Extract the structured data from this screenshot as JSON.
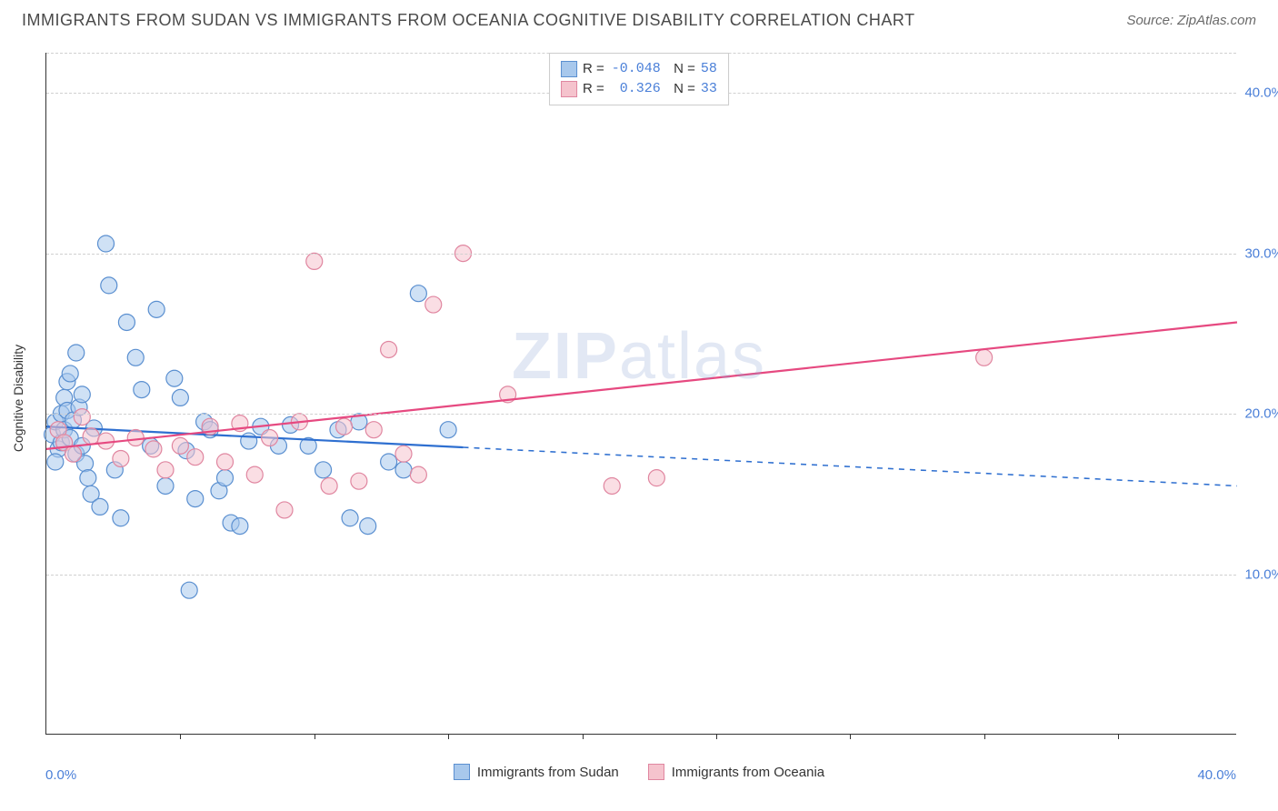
{
  "title": "IMMIGRANTS FROM SUDAN VS IMMIGRANTS FROM OCEANIA COGNITIVE DISABILITY CORRELATION CHART",
  "source": "Source: ZipAtlas.com",
  "y_axis_label": "Cognitive Disability",
  "watermark": "ZIPatlas",
  "chart": {
    "type": "scatter",
    "xlim": [
      0,
      40
    ],
    "ylim": [
      0,
      42.5
    ],
    "x_min_label": "0.0%",
    "x_max_label": "40.0%",
    "y_ticks": [
      10,
      20,
      30,
      40
    ],
    "y_tick_labels": [
      "10.0%",
      "20.0%",
      "30.0%",
      "40.0%"
    ],
    "x_tick_positions": [
      4.5,
      9,
      13.5,
      18,
      22.5,
      27,
      31.5,
      36
    ],
    "background": "#ffffff",
    "grid_color": "#d0d0d0",
    "marker_radius": 9,
    "marker_opacity": 0.55,
    "series": [
      {
        "name": "Immigrants from Sudan",
        "fill": "#a8c8ec",
        "stroke": "#5a8fd0",
        "r_value": "-0.048",
        "n_value": "58",
        "trend": {
          "x1": 0,
          "y1": 19.2,
          "x2": 40,
          "y2": 15.5,
          "solid_until_x": 14.0,
          "color": "#2e6fd0",
          "width": 2.2
        },
        "points": [
          [
            0.2,
            18.7
          ],
          [
            0.3,
            19.5
          ],
          [
            0.4,
            17.8
          ],
          [
            0.5,
            20.0
          ],
          [
            0.5,
            18.2
          ],
          [
            0.6,
            21.0
          ],
          [
            0.6,
            19.0
          ],
          [
            0.7,
            22.0
          ],
          [
            0.7,
            20.2
          ],
          [
            0.8,
            18.5
          ],
          [
            0.8,
            22.5
          ],
          [
            0.9,
            19.6
          ],
          [
            1.0,
            23.8
          ],
          [
            1.0,
            17.5
          ],
          [
            1.1,
            20.4
          ],
          [
            1.2,
            21.2
          ],
          [
            1.2,
            18.0
          ],
          [
            1.3,
            16.9
          ],
          [
            1.4,
            16.0
          ],
          [
            1.5,
            15.0
          ],
          [
            1.6,
            19.1
          ],
          [
            1.8,
            14.2
          ],
          [
            2.0,
            30.6
          ],
          [
            2.1,
            28.0
          ],
          [
            2.3,
            16.5
          ],
          [
            2.5,
            13.5
          ],
          [
            2.7,
            25.7
          ],
          [
            3.0,
            23.5
          ],
          [
            3.2,
            21.5
          ],
          [
            3.5,
            18.0
          ],
          [
            3.7,
            26.5
          ],
          [
            4.0,
            15.5
          ],
          [
            4.3,
            22.2
          ],
          [
            4.5,
            21.0
          ],
          [
            4.7,
            17.7
          ],
          [
            4.8,
            9.0
          ],
          [
            5.0,
            14.7
          ],
          [
            5.3,
            19.5
          ],
          [
            5.5,
            19.0
          ],
          [
            5.8,
            15.2
          ],
          [
            6.0,
            16.0
          ],
          [
            6.2,
            13.2
          ],
          [
            6.5,
            13.0
          ],
          [
            6.8,
            18.3
          ],
          [
            7.2,
            19.2
          ],
          [
            7.8,
            18.0
          ],
          [
            8.2,
            19.3
          ],
          [
            8.8,
            18.0
          ],
          [
            9.3,
            16.5
          ],
          [
            9.8,
            19.0
          ],
          [
            10.2,
            13.5
          ],
          [
            10.5,
            19.5
          ],
          [
            11.5,
            17.0
          ],
          [
            12.5,
            27.5
          ],
          [
            10.8,
            13.0
          ],
          [
            13.5,
            19.0
          ],
          [
            12.0,
            16.5
          ],
          [
            0.3,
            17.0
          ]
        ]
      },
      {
        "name": "Immigrants from Oceania",
        "fill": "#f5c3cd",
        "stroke": "#e086a0",
        "r_value": " 0.326",
        "n_value": "33",
        "trend": {
          "x1": 0,
          "y1": 17.8,
          "x2": 40,
          "y2": 25.7,
          "solid_until_x": 40,
          "color": "#e64980",
          "width": 2.2
        },
        "points": [
          [
            0.4,
            19.0
          ],
          [
            0.6,
            18.2
          ],
          [
            0.9,
            17.5
          ],
          [
            1.2,
            19.8
          ],
          [
            1.5,
            18.6
          ],
          [
            2.0,
            18.3
          ],
          [
            2.5,
            17.2
          ],
          [
            3.0,
            18.5
          ],
          [
            3.6,
            17.8
          ],
          [
            4.0,
            16.5
          ],
          [
            4.5,
            18.0
          ],
          [
            5.0,
            17.3
          ],
          [
            5.5,
            19.2
          ],
          [
            6.0,
            17.0
          ],
          [
            6.5,
            19.4
          ],
          [
            7.0,
            16.2
          ],
          [
            7.5,
            18.5
          ],
          [
            8.0,
            14.0
          ],
          [
            8.5,
            19.5
          ],
          [
            9.0,
            29.5
          ],
          [
            9.5,
            15.5
          ],
          [
            10.0,
            19.2
          ],
          [
            10.5,
            15.8
          ],
          [
            11.0,
            19.0
          ],
          [
            11.5,
            24.0
          ],
          [
            12.0,
            17.5
          ],
          [
            12.5,
            16.2
          ],
          [
            13.0,
            26.8
          ],
          [
            14.0,
            30.0
          ],
          [
            15.5,
            21.2
          ],
          [
            19.0,
            15.5
          ],
          [
            20.5,
            16.0
          ],
          [
            31.5,
            23.5
          ]
        ]
      }
    ]
  },
  "bottom_legend": [
    {
      "label": "Immigrants from Sudan",
      "fill": "#a8c8ec",
      "stroke": "#5a8fd0"
    },
    {
      "label": "Immigrants from Oceania",
      "fill": "#f5c3cd",
      "stroke": "#e086a0"
    }
  ]
}
